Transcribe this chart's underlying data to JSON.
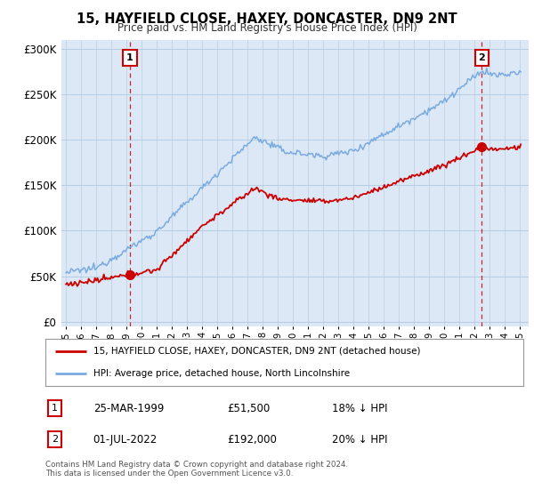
{
  "title": "15, HAYFIELD CLOSE, HAXEY, DONCASTER, DN9 2NT",
  "subtitle": "Price paid vs. HM Land Registry's House Price Index (HPI)",
  "ylabel_ticks": [
    "£0",
    "£50K",
    "£100K",
    "£150K",
    "£200K",
    "£250K",
    "£300K"
  ],
  "ytick_values": [
    0,
    50000,
    100000,
    150000,
    200000,
    250000,
    300000
  ],
  "ylim": [
    -5000,
    310000
  ],
  "xlim_start": 1994.7,
  "xlim_end": 2025.6,
  "property_color": "#cc0000",
  "hpi_color": "#7aabe0",
  "plot_bg_color": "#dce8f5",
  "sale1_year": 1999.22,
  "sale1_price": 51500,
  "sale2_year": 2022.5,
  "sale2_price": 192000,
  "sale1_label": "1",
  "sale2_label": "2",
  "legend_line1": "15, HAYFIELD CLOSE, HAXEY, DONCASTER, DN9 2NT (detached house)",
  "legend_line2": "HPI: Average price, detached house, North Lincolnshire",
  "table_row1_num": "1",
  "table_row1_date": "25-MAR-1999",
  "table_row1_price": "£51,500",
  "table_row1_hpi": "18% ↓ HPI",
  "table_row2_num": "2",
  "table_row2_date": "01-JUL-2022",
  "table_row2_price": "£192,000",
  "table_row2_hpi": "20% ↓ HPI",
  "footer": "Contains HM Land Registry data © Crown copyright and database right 2024.\nThis data is licensed under the Open Government Licence v3.0.",
  "background_color": "#ffffff",
  "grid_color": "#b0c8e0"
}
